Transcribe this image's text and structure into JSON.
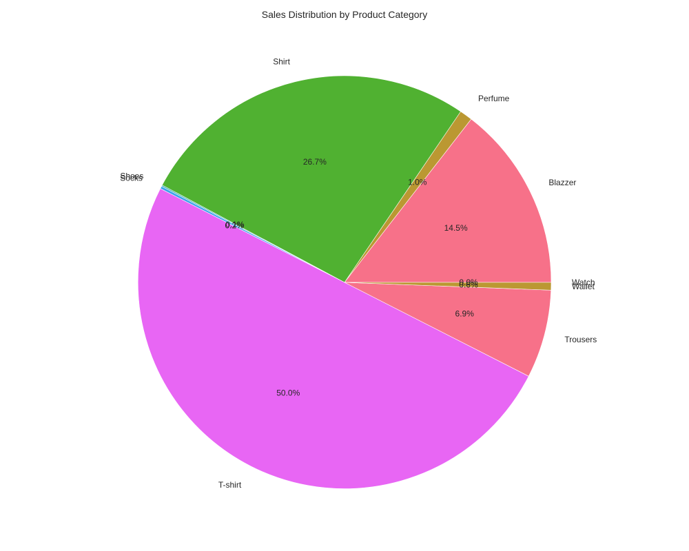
{
  "chart_data": {
    "type": "pie",
    "title": "Sales Distribution by Product Category",
    "start_angle_deg": 0,
    "direction": "counterclockwise",
    "slices": [
      {
        "label": "Blazzer",
        "value": 14.5,
        "pct_text": "14.5%",
        "color": "#f77189"
      },
      {
        "label": "Perfume",
        "value": 1.0,
        "pct_text": "1.0%",
        "color": "#bb9832"
      },
      {
        "label": "Shirt",
        "value": 26.7,
        "pct_text": "26.7%",
        "color": "#50b131"
      },
      {
        "label": "Shoes",
        "value": 0.1,
        "pct_text": "0.1%",
        "color": "#36ada4"
      },
      {
        "label": "Socks",
        "value": 0.2,
        "pct_text": "0.2%",
        "color": "#3ba3ec"
      },
      {
        "label": "T-shirt",
        "value": 50.0,
        "pct_text": "50.0%",
        "color": "#e866f4"
      },
      {
        "label": "Trousers",
        "value": 6.9,
        "pct_text": "6.9%",
        "color": "#f77189"
      },
      {
        "label": "Wallet",
        "value": 0.6,
        "pct_text": "0.6%",
        "color": "#bb9832"
      },
      {
        "label": "Watch",
        "value": 0.0,
        "pct_text": "0.0%",
        "color": "#50b131"
      }
    ]
  }
}
